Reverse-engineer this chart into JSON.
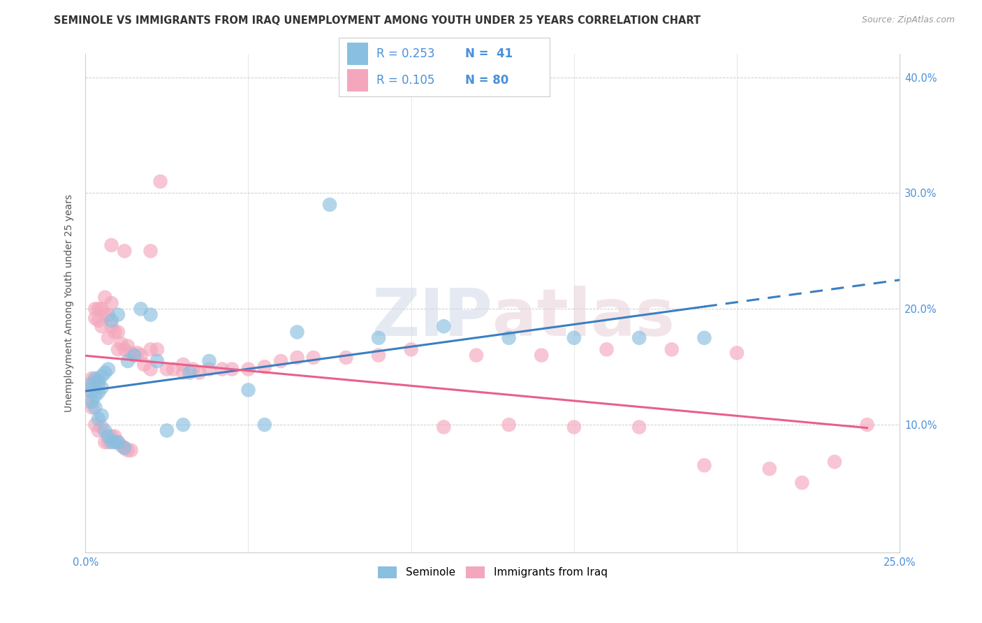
{
  "title": "SEMINOLE VS IMMIGRANTS FROM IRAQ UNEMPLOYMENT AMONG YOUTH UNDER 25 YEARS CORRELATION CHART",
  "source": "Source: ZipAtlas.com",
  "ylabel": "Unemployment Among Youth under 25 years",
  "xlim": [
    0.0,
    0.25
  ],
  "ylim": [
    -0.01,
    0.42
  ],
  "blue_color": "#89bfe0",
  "pink_color": "#f4a7bc",
  "blue_line_color": "#3a7fc1",
  "pink_line_color": "#e8608a",
  "watermark": "ZIPatlas",
  "blue_scatter_x": [
    0.001,
    0.002,
    0.002,
    0.003,
    0.003,
    0.003,
    0.004,
    0.004,
    0.004,
    0.005,
    0.005,
    0.005,
    0.006,
    0.006,
    0.007,
    0.007,
    0.008,
    0.008,
    0.009,
    0.01,
    0.01,
    0.012,
    0.013,
    0.015,
    0.017,
    0.02,
    0.022,
    0.025,
    0.03,
    0.032,
    0.038,
    0.05,
    0.055,
    0.065,
    0.075,
    0.09,
    0.11,
    0.13,
    0.15,
    0.17,
    0.19
  ],
  "blue_scatter_y": [
    0.13,
    0.135,
    0.12,
    0.14,
    0.125,
    0.115,
    0.138,
    0.128,
    0.105,
    0.142,
    0.132,
    0.108,
    0.145,
    0.095,
    0.148,
    0.09,
    0.19,
    0.085,
    0.085,
    0.195,
    0.085,
    0.08,
    0.155,
    0.16,
    0.2,
    0.195,
    0.155,
    0.095,
    0.1,
    0.145,
    0.155,
    0.13,
    0.1,
    0.18,
    0.29,
    0.175,
    0.185,
    0.175,
    0.175,
    0.175,
    0.175
  ],
  "pink_scatter_x": [
    0.001,
    0.001,
    0.002,
    0.002,
    0.002,
    0.003,
    0.003,
    0.003,
    0.003,
    0.004,
    0.004,
    0.004,
    0.004,
    0.005,
    0.005,
    0.005,
    0.006,
    0.006,
    0.006,
    0.007,
    0.007,
    0.007,
    0.008,
    0.008,
    0.008,
    0.009,
    0.009,
    0.01,
    0.01,
    0.01,
    0.011,
    0.011,
    0.012,
    0.012,
    0.013,
    0.013,
    0.014,
    0.014,
    0.015,
    0.016,
    0.017,
    0.018,
    0.02,
    0.02,
    0.022,
    0.023,
    0.025,
    0.027,
    0.03,
    0.033,
    0.035,
    0.038,
    0.042,
    0.045,
    0.05,
    0.055,
    0.06,
    0.065,
    0.07,
    0.08,
    0.09,
    0.1,
    0.11,
    0.12,
    0.13,
    0.14,
    0.15,
    0.16,
    0.17,
    0.18,
    0.19,
    0.2,
    0.21,
    0.22,
    0.23,
    0.24,
    0.008,
    0.012,
    0.02,
    0.03
  ],
  "pink_scatter_y": [
    0.135,
    0.12,
    0.14,
    0.128,
    0.115,
    0.2,
    0.192,
    0.138,
    0.1,
    0.2,
    0.19,
    0.135,
    0.095,
    0.2,
    0.185,
    0.098,
    0.21,
    0.195,
    0.085,
    0.195,
    0.175,
    0.085,
    0.205,
    0.185,
    0.09,
    0.18,
    0.09,
    0.18,
    0.165,
    0.085,
    0.17,
    0.082,
    0.165,
    0.08,
    0.168,
    0.078,
    0.162,
    0.078,
    0.16,
    0.162,
    0.16,
    0.152,
    0.165,
    0.148,
    0.165,
    0.31,
    0.148,
    0.148,
    0.145,
    0.148,
    0.145,
    0.148,
    0.148,
    0.148,
    0.148,
    0.15,
    0.155,
    0.158,
    0.158,
    0.158,
    0.16,
    0.165,
    0.098,
    0.16,
    0.1,
    0.16,
    0.098,
    0.165,
    0.098,
    0.165,
    0.065,
    0.162,
    0.062,
    0.05,
    0.068,
    0.1,
    0.255,
    0.25,
    0.25,
    0.152
  ]
}
